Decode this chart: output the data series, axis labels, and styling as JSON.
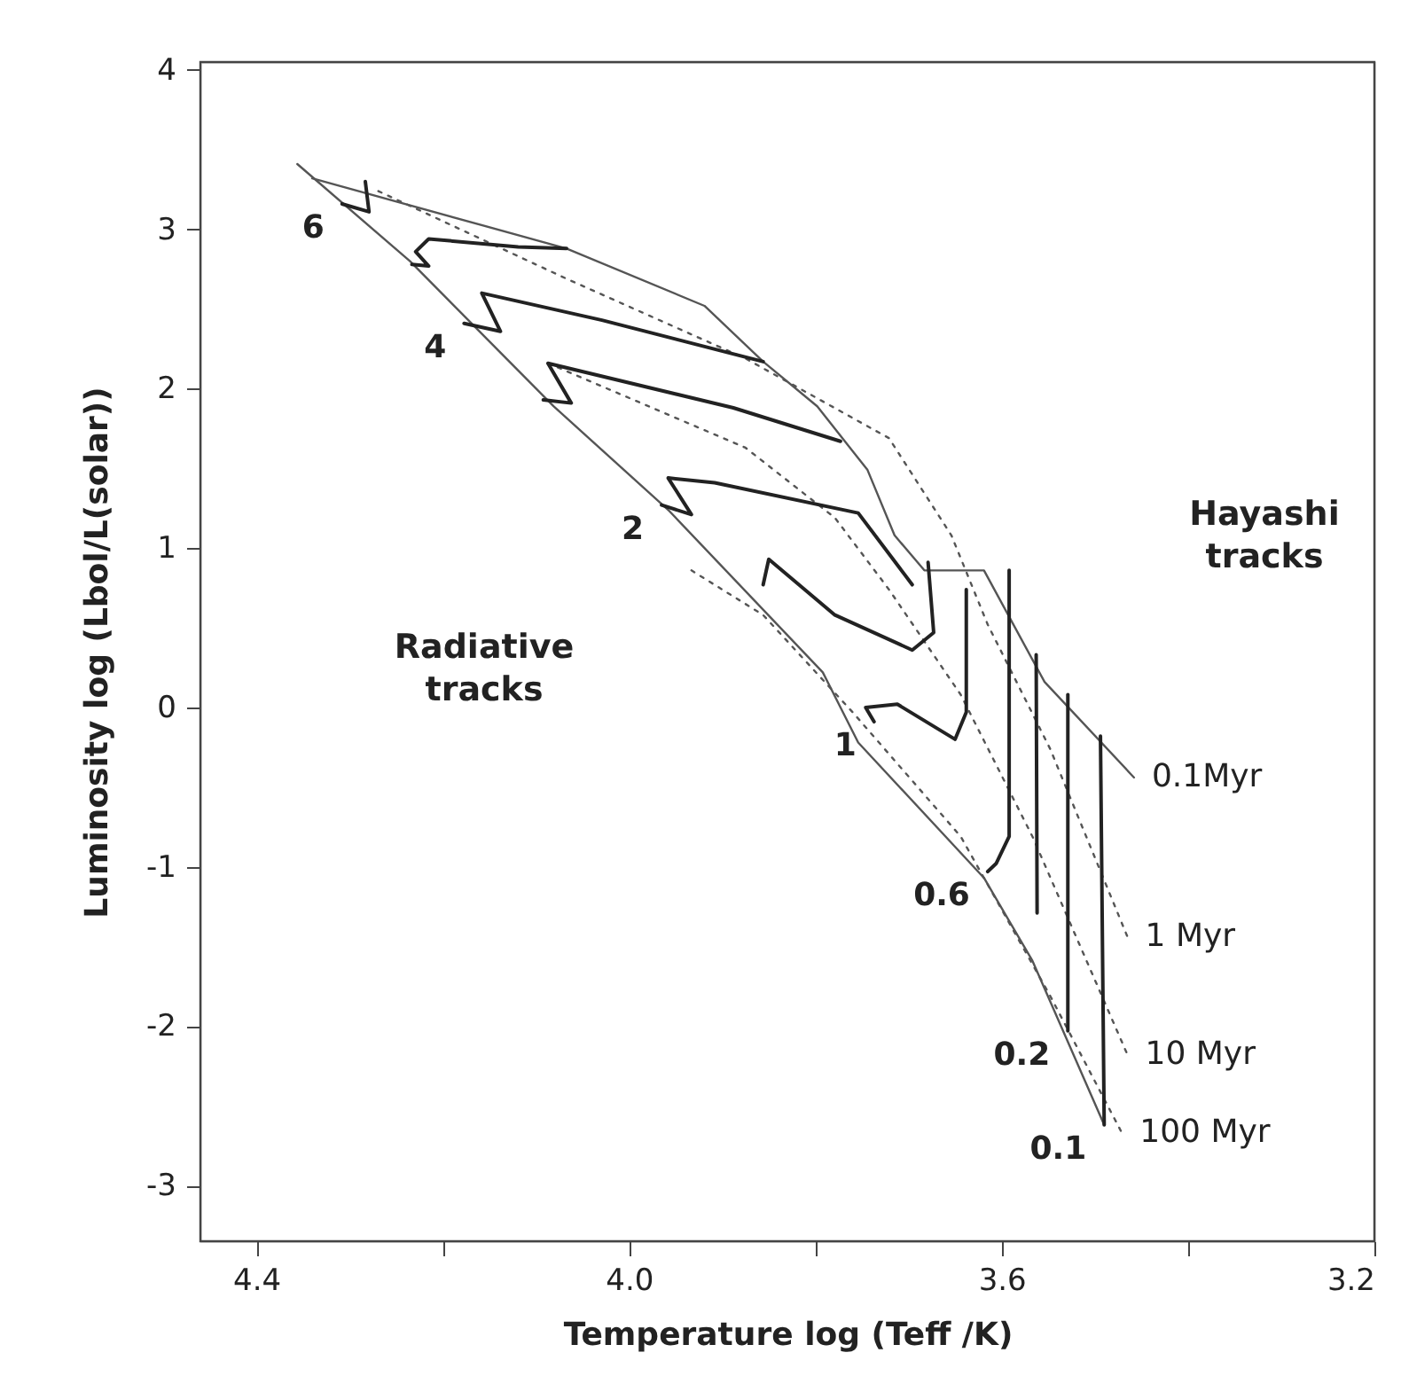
{
  "chart_data": {
    "type": "line",
    "xlabel": "Temperature   log (Teff /K)",
    "ylabel": "Luminosity   log (Lbol/L(solar))",
    "xlim": [
      4.46,
      3.2
    ],
    "ylim": [
      -3.35,
      4.05
    ],
    "xticks": [
      4.4,
      {
        "value": 4.2,
        "label": null
      },
      "4.0",
      {
        "value": 3.8,
        "label": null
      },
      3.6,
      {
        "value": 3.4,
        "label": null
      },
      3.2
    ],
    "yticks": [
      -3,
      -2,
      -1,
      0,
      1,
      2,
      3,
      4
    ],
    "grid": false,
    "marker": "none",
    "annotations": [
      "Radiative tracks",
      "Hayashi tracks"
    ],
    "series": [
      {
        "line_style": "solid",
        "color": "#555555",
        "x": [
          4.356,
          4.235,
          4.081,
          3.958,
          3.792,
          3.754,
          3.619,
          3.567,
          3.49
        ],
        "values": [
          3.41,
          2.8,
          1.89,
          1.24,
          0.22,
          -0.22,
          -1.07,
          -1.59,
          -2.62
        ]
      },
      {
        "name": "0.1Myr",
        "line_style": "solid",
        "color": "#555555",
        "x": [
          4.34,
          4.067,
          3.919,
          3.856,
          3.798,
          3.744,
          3.715,
          3.683,
          3.619,
          3.554,
          3.458
        ],
        "values": [
          3.32,
          2.88,
          2.52,
          2.17,
          1.89,
          1.49,
          1.08,
          0.86,
          0.86,
          0.16,
          -0.44
        ]
      },
      {
        "name": "1 Myr",
        "line_style": "dotted",
        "color": "#555555",
        "x": [
          4.269,
          4.067,
          3.875,
          3.721,
          3.654,
          3.615,
          3.548,
          3.465
        ],
        "values": [
          3.24,
          2.69,
          2.19,
          1.69,
          1.08,
          0.52,
          -0.26,
          -1.44
        ]
      },
      {
        "name": "10 Myr",
        "line_style": "dotted",
        "color": "#555555",
        "x": [
          4.087,
          3.875,
          3.779,
          3.721,
          3.644,
          3.567,
          3.465
        ],
        "values": [
          2.16,
          1.63,
          1.19,
          0.74,
          0.08,
          -0.81,
          -2.18
        ]
      },
      {
        "name": "100 Myr",
        "line_style": "dotted",
        "color": "#555555",
        "x": [
          3.933,
          3.856,
          3.76,
          3.644,
          3.548,
          3.471
        ],
        "values": [
          0.86,
          0.58,
          -0.03,
          -0.81,
          -1.81,
          -2.67
        ]
      },
      {
        "name": "6",
        "line_style": "solid",
        "color": "#222222",
        "x": [
          4.283,
          4.279,
          4.308
        ],
        "values": [
          3.3,
          3.11,
          3.16
        ]
      },
      {
        "line_style": "solid",
        "color": "#222222",
        "x": [
          4.067,
          4.119,
          4.215,
          4.229,
          4.215,
          4.233
        ],
        "values": [
          2.88,
          2.89,
          2.94,
          2.86,
          2.77,
          2.78
        ]
      },
      {
        "name": "4",
        "line_style": "solid",
        "color": "#222222",
        "x": [
          3.856,
          4.029,
          4.158,
          4.138,
          4.177
        ],
        "values": [
          2.17,
          2.43,
          2.6,
          2.36,
          2.41
        ]
      },
      {
        "line_style": "solid",
        "color": "#222222",
        "x": [
          3.773,
          3.888,
          4.087,
          4.062,
          4.092
        ],
        "values": [
          1.67,
          1.88,
          2.16,
          1.91,
          1.93
        ]
      },
      {
        "name": "2",
        "line_style": "solid",
        "color": "#222222",
        "x": [
          3.696,
          3.754,
          3.908,
          3.958,
          3.933,
          3.965
        ],
        "values": [
          0.77,
          1.22,
          1.41,
          1.44,
          1.21,
          1.27
        ]
      },
      {
        "line_style": "solid",
        "color": "#222222",
        "x": [
          3.679,
          3.673,
          3.696,
          3.779,
          3.85,
          3.856
        ],
        "values": [
          0.91,
          0.47,
          0.36,
          0.58,
          0.93,
          0.77
        ]
      },
      {
        "name": "1",
        "line_style": "solid",
        "color": "#222222",
        "x": [
          3.638,
          3.638,
          3.65,
          3.712,
          3.746,
          3.737
        ],
        "values": [
          0.74,
          -0.03,
          -0.2,
          0.02,
          0.0,
          -0.09
        ]
      },
      {
        "name": "0.6",
        "line_style": "solid",
        "color": "#222222",
        "x": [
          3.592,
          3.592,
          3.606,
          3.615
        ],
        "values": [
          0.86,
          -0.81,
          -0.98,
          -1.03
        ]
      },
      {
        "line_style": "solid",
        "color": "#222222",
        "x": [
          3.563,
          3.562
        ],
        "values": [
          0.33,
          -1.29
        ]
      },
      {
        "name": "0.2",
        "line_style": "solid",
        "color": "#222222",
        "x": [
          3.529,
          3.529
        ],
        "values": [
          0.08,
          -2.03
        ]
      },
      {
        "name": "0.1",
        "line_style": "solid",
        "color": "#222222",
        "x": [
          3.494,
          3.49
        ],
        "values": [
          -0.18,
          -2.62
        ]
      }
    ]
  }
}
